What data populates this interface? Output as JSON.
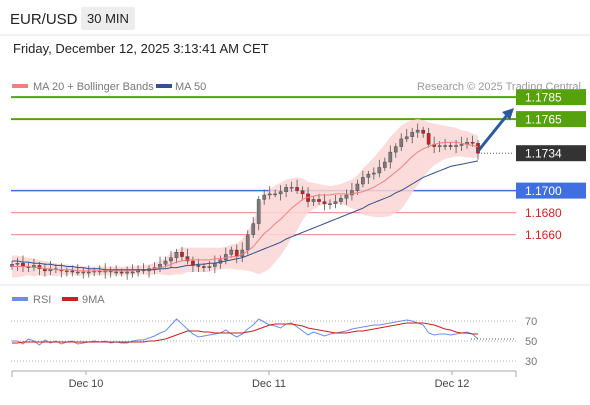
{
  "header": {
    "symbol": "EUR/USD",
    "timeframe": "30 MIN",
    "datetime": "Friday, December 12, 2025 3:13:41 AM CET",
    "source": "Research © 2025 Trading Central"
  },
  "colors": {
    "ma20": "#f08080",
    "bollinger_fill": "#fbd5d5",
    "ma50": "#34518a",
    "resistance": "#56a20d",
    "pivot": "#3f6fe0",
    "support": "#f29a9a",
    "candle_up": "#7a7a7a",
    "candle_down": "#cc1f1f",
    "current": "#333333",
    "rsi": "#6c8ee6",
    "rsi_ma": "#cc1f1f",
    "arrow": "#2b5a9e"
  },
  "chart_data": [
    {
      "type": "candlestick",
      "legend": [
        "MA 20 + Bollinger Bands",
        "MA 50"
      ],
      "x_ticks": [
        "Dec 10",
        "Dec 11",
        "Dec 12"
      ],
      "ylim": [
        1.1626,
        1.1786
      ],
      "levels": [
        {
          "value": 1.1785,
          "label": "1.1785",
          "kind": "resistance"
        },
        {
          "value": 1.1765,
          "label": "1.1765",
          "kind": "resistance"
        },
        {
          "value": 1.1734,
          "label": "1.1734",
          "kind": "current"
        },
        {
          "value": 1.17,
          "label": "1.1700",
          "kind": "pivot"
        },
        {
          "value": 1.168,
          "label": "1.1680",
          "kind": "support"
        },
        {
          "value": 1.166,
          "label": "1.1660",
          "kind": "support"
        }
      ],
      "close": [
        1.1633,
        1.1634,
        1.1631,
        1.163,
        1.1632,
        1.1629,
        1.1627,
        1.1629,
        1.1628,
        1.1627,
        1.1627,
        1.1626,
        1.1626,
        1.1626,
        1.1626,
        1.1627,
        1.1626,
        1.1627,
        1.1626,
        1.1626,
        1.1625,
        1.1626,
        1.1626,
        1.1628,
        1.1627,
        1.1629,
        1.163,
        1.1633,
        1.1636,
        1.1639,
        1.1644,
        1.164,
        1.1636,
        1.1632,
        1.1631,
        1.163,
        1.1631,
        1.1634,
        1.1637,
        1.1642,
        1.1646,
        1.164,
        1.1646,
        1.166,
        1.167,
        1.1692,
        1.1696,
        1.1697,
        1.1697,
        1.1699,
        1.1703,
        1.1703,
        1.17,
        1.1697,
        1.169,
        1.1692,
        1.169,
        1.1688,
        1.1688,
        1.169,
        1.1693,
        1.1696,
        1.17,
        1.1706,
        1.1712,
        1.1715,
        1.1716,
        1.1721,
        1.1726,
        1.1735,
        1.174,
        1.1747,
        1.1749,
        1.1753,
        1.1755,
        1.1752,
        1.1742,
        1.174,
        1.1741,
        1.1741,
        1.174,
        1.1741,
        1.1742,
        1.1744,
        1.1743,
        1.1734
      ],
      "ma20": [
        1.1631,
        1.1631,
        1.1631,
        1.1631,
        1.163,
        1.163,
        1.1629,
        1.1629,
        1.1628,
        1.1628,
        1.1628,
        1.1628,
        1.1627,
        1.1627,
        1.1627,
        1.1627,
        1.1627,
        1.1627,
        1.1627,
        1.1627,
        1.1627,
        1.1627,
        1.1627,
        1.1628,
        1.1628,
        1.1628,
        1.1629,
        1.163,
        1.1631,
        1.1633,
        1.1635,
        1.1636,
        1.1637,
        1.1637,
        1.1637,
        1.1637,
        1.1637,
        1.1638,
        1.1638,
        1.1639,
        1.164,
        1.164,
        1.1642,
        1.1645,
        1.1649,
        1.1655,
        1.1661,
        1.1665,
        1.167,
        1.1674,
        1.1679,
        1.1684,
        1.1688,
        1.1692,
        1.1694,
        1.1695,
        1.1696,
        1.1696,
        1.1696,
        1.1697,
        1.1697,
        1.1697,
        1.1697,
        1.1698,
        1.1699,
        1.1701,
        1.1703,
        1.1706,
        1.1709,
        1.1713,
        1.1717,
        1.1721,
        1.1726,
        1.1731,
        1.1735,
        1.1738,
        1.174,
        1.1742,
        1.1743,
        1.1744,
        1.1744,
        1.1744,
        1.1743,
        1.1742,
        1.1741,
        1.174
      ],
      "bb_upper": [
        1.1641,
        1.1641,
        1.164,
        1.1639,
        1.1638,
        1.1637,
        1.1636,
        1.1635,
        1.1634,
        1.1633,
        1.1633,
        1.1632,
        1.1632,
        1.1631,
        1.1631,
        1.1631,
        1.1631,
        1.1631,
        1.1631,
        1.1631,
        1.1631,
        1.1631,
        1.1631,
        1.1632,
        1.1632,
        1.1633,
        1.1634,
        1.1636,
        1.1639,
        1.1643,
        1.1646,
        1.1648,
        1.1648,
        1.1648,
        1.1648,
        1.1648,
        1.1648,
        1.1648,
        1.1648,
        1.1649,
        1.1651,
        1.1652,
        1.1656,
        1.1663,
        1.1672,
        1.1686,
        1.1696,
        1.1701,
        1.1705,
        1.1707,
        1.171,
        1.1711,
        1.1712,
        1.1711,
        1.1708,
        1.1707,
        1.1706,
        1.1705,
        1.1704,
        1.1705,
        1.1706,
        1.1708,
        1.171,
        1.1714,
        1.172,
        1.1725,
        1.173,
        1.1736,
        1.1742,
        1.1749,
        1.1754,
        1.1759,
        1.1762,
        1.1764,
        1.1765,
        1.1764,
        1.1762,
        1.1761,
        1.176,
        1.1759,
        1.1758,
        1.1757,
        1.1755,
        1.1754,
        1.1752,
        1.175
      ],
      "bb_lower": [
        1.1621,
        1.1621,
        1.1622,
        1.1623,
        1.1622,
        1.1623,
        1.1622,
        1.1623,
        1.1622,
        1.1623,
        1.1623,
        1.1624,
        1.1622,
        1.1623,
        1.1623,
        1.1623,
        1.1623,
        1.1623,
        1.1623,
        1.1623,
        1.1623,
        1.1623,
        1.1623,
        1.1624,
        1.1624,
        1.1623,
        1.1624,
        1.1624,
        1.1623,
        1.1623,
        1.1624,
        1.1624,
        1.1626,
        1.1626,
        1.1626,
        1.1626,
        1.1626,
        1.1628,
        1.1628,
        1.1629,
        1.1629,
        1.1628,
        1.1628,
        1.1627,
        1.1626,
        1.1624,
        1.1626,
        1.1629,
        1.1635,
        1.1641,
        1.1648,
        1.1657,
        1.1664,
        1.1673,
        1.168,
        1.1683,
        1.1686,
        1.1687,
        1.1688,
        1.1689,
        1.1688,
        1.1686,
        1.1684,
        1.1682,
        1.1678,
        1.1677,
        1.1676,
        1.1676,
        1.1676,
        1.1677,
        1.168,
        1.1683,
        1.169,
        1.1698,
        1.1705,
        1.1712,
        1.1718,
        1.1723,
        1.1726,
        1.1729,
        1.173,
        1.1731,
        1.1731,
        1.173,
        1.173,
        1.173
      ],
      "ma50": [
        1.1636,
        1.1636,
        1.1635,
        1.1635,
        1.1634,
        1.1634,
        1.1633,
        1.1633,
        1.1632,
        1.1632,
        1.1631,
        1.1631,
        1.163,
        1.163,
        1.1629,
        1.1629,
        1.1629,
        1.1628,
        1.1628,
        1.1628,
        1.1628,
        1.1628,
        1.1628,
        1.1628,
        1.1628,
        1.1628,
        1.1628,
        1.1629,
        1.1629,
        1.163,
        1.163,
        1.1631,
        1.1632,
        1.1632,
        1.1633,
        1.1633,
        1.1634,
        1.1634,
        1.1635,
        1.1636,
        1.1637,
        1.1638,
        1.1639,
        1.1641,
        1.1643,
        1.1645,
        1.1647,
        1.1649,
        1.1651,
        1.1653,
        1.1656,
        1.1658,
        1.166,
        1.1662,
        1.1664,
        1.1666,
        1.1668,
        1.167,
        1.1672,
        1.1674,
        1.1676,
        1.1678,
        1.168,
        1.1682,
        1.1684,
        1.1687,
        1.1689,
        1.1691,
        1.1693,
        1.1695,
        1.1698,
        1.17,
        1.1703,
        1.1706,
        1.1709,
        1.1712,
        1.1714,
        1.1716,
        1.1718,
        1.172,
        1.1722,
        1.1723,
        1.1724,
        1.1725,
        1.1726,
        1.1727
      ]
    },
    {
      "type": "line",
      "legend": [
        "RSI",
        "9MA"
      ],
      "ylim": [
        20,
        80
      ],
      "y_ticks": [
        70,
        50,
        30
      ],
      "series": [
        {
          "name": "RSI",
          "values": [
            50,
            50,
            47,
            52,
            50,
            46,
            51,
            48,
            50,
            47,
            49,
            50,
            47,
            48,
            49,
            50,
            49,
            50,
            48,
            49,
            48,
            48,
            50,
            51,
            51,
            53,
            55,
            58,
            60,
            66,
            72,
            67,
            62,
            57,
            54,
            55,
            56,
            57,
            58,
            61,
            57,
            54,
            57,
            62,
            66,
            72,
            69,
            66,
            65,
            63,
            67,
            68,
            64,
            60,
            56,
            59,
            57,
            55,
            57,
            58,
            59,
            60,
            62,
            63,
            64,
            65,
            66,
            66,
            67,
            68,
            69,
            70,
            71,
            70,
            68,
            66,
            58,
            56,
            57,
            57,
            56,
            57,
            58,
            59,
            57,
            52
          ]
        },
        {
          "name": "9MA",
          "values": [
            48,
            48,
            49,
            49,
            49,
            49,
            49,
            49,
            49,
            49,
            49,
            49,
            49,
            49,
            49,
            49,
            49,
            49,
            49,
            49,
            49,
            49,
            49,
            49,
            49,
            50,
            50,
            51,
            52,
            54,
            56,
            58,
            60,
            60,
            60,
            59,
            59,
            58,
            58,
            58,
            58,
            58,
            58,
            59,
            60,
            62,
            64,
            66,
            67,
            67,
            67,
            67,
            66,
            65,
            63,
            62,
            61,
            60,
            59,
            58,
            58,
            58,
            59,
            60,
            60,
            61,
            62,
            63,
            64,
            65,
            66,
            67,
            68,
            68,
            68,
            68,
            67,
            66,
            64,
            62,
            61,
            59,
            58,
            58,
            57,
            57
          ]
        }
      ]
    }
  ]
}
